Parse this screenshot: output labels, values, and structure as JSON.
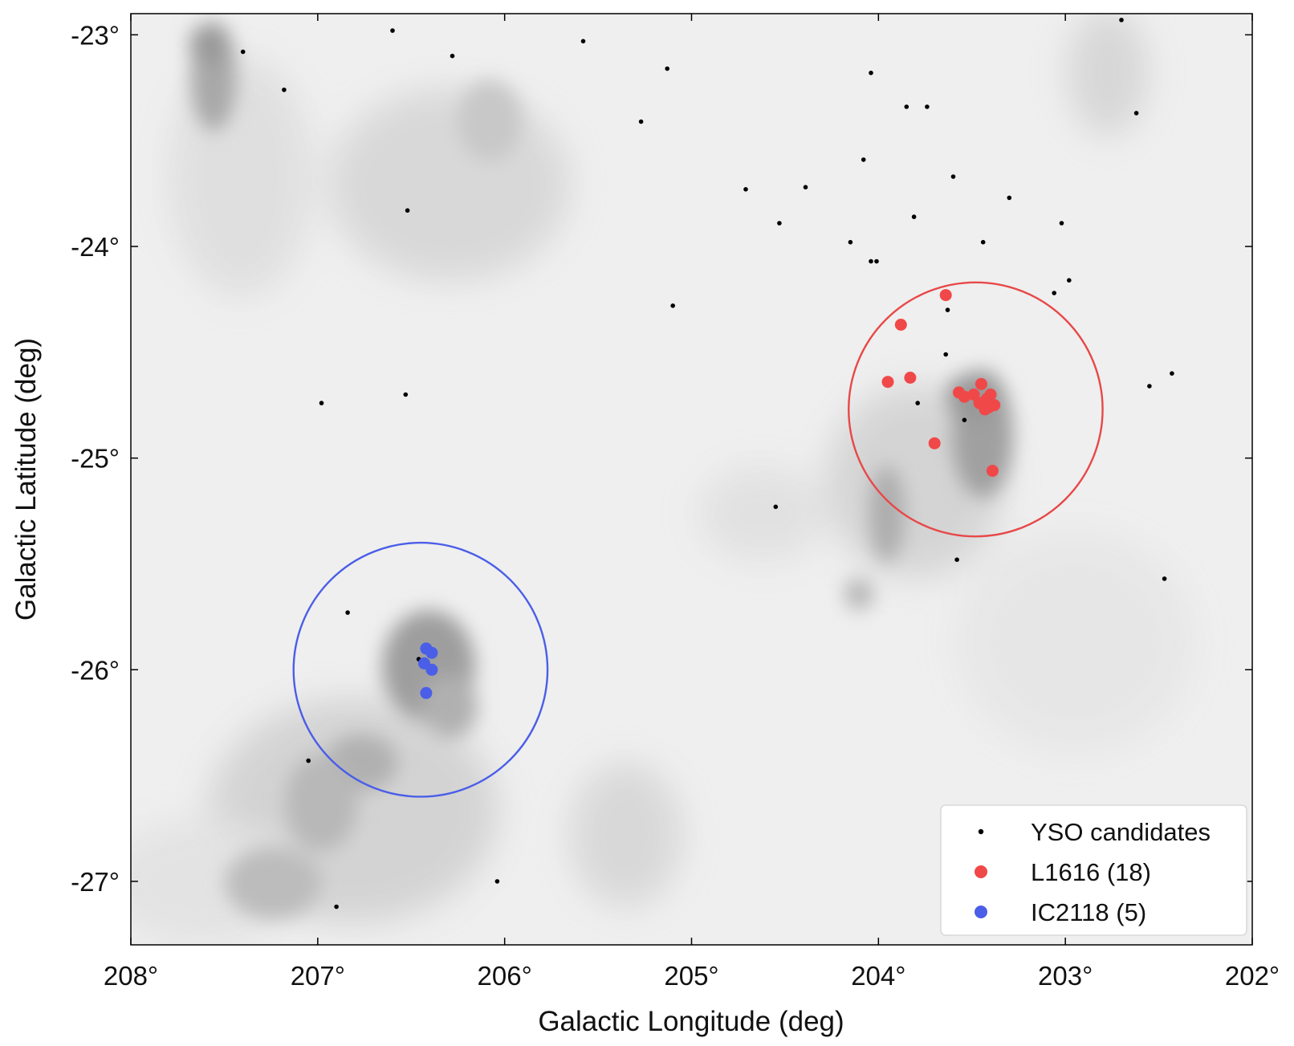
{
  "chart_data": {
    "type": "scatter",
    "xlabel": "Galactic Longitude (deg)",
    "ylabel": "Galactic Latitude (deg)",
    "xlim": [
      208,
      202
    ],
    "ylim": [
      -27.3,
      -22.9
    ],
    "x_ticks": [
      {
        "value": 208,
        "label": "208°"
      },
      {
        "value": 207,
        "label": "207°"
      },
      {
        "value": 206,
        "label": "206°"
      },
      {
        "value": 205,
        "label": "205°"
      },
      {
        "value": 204,
        "label": "204°"
      },
      {
        "value": 203,
        "label": "203°"
      },
      {
        "value": 202,
        "label": "202°"
      }
    ],
    "y_ticks": [
      {
        "value": -23,
        "label": "-23°"
      },
      {
        "value": -24,
        "label": "-24°"
      },
      {
        "value": -25,
        "label": "-25°"
      },
      {
        "value": -26,
        "label": "-26°"
      },
      {
        "value": -27,
        "label": "-27°"
      }
    ],
    "background": "grayscale extinction map",
    "regions": [
      {
        "name": "L1616",
        "center": [
          203.48,
          -24.77
        ],
        "radius_deg": 0.6,
        "color": "#e84848"
      },
      {
        "name": "IC2118",
        "center": [
          206.45,
          -26.0
        ],
        "radius_deg": 0.6,
        "color": "#4a5ee8"
      }
    ],
    "series": [
      {
        "name": "YSO candidates",
        "legend_label": "YSO candidates",
        "color": "#000000",
        "marker": "small-dot",
        "points": [
          [
            206.6,
            -22.98
          ],
          [
            207.4,
            -23.08
          ],
          [
            207.18,
            -23.26
          ],
          [
            206.28,
            -23.1
          ],
          [
            205.58,
            -23.03
          ],
          [
            205.13,
            -23.16
          ],
          [
            205.27,
            -23.41
          ],
          [
            204.04,
            -23.18
          ],
          [
            203.85,
            -23.34
          ],
          [
            203.74,
            -23.34
          ],
          [
            202.62,
            -23.37
          ],
          [
            202.7,
            -22.93
          ],
          [
            204.08,
            -23.59
          ],
          [
            203.6,
            -23.67
          ],
          [
            203.3,
            -23.77
          ],
          [
            204.71,
            -23.73
          ],
          [
            204.39,
            -23.72
          ],
          [
            204.53,
            -23.89
          ],
          [
            203.81,
            -23.86
          ],
          [
            203.02,
            -23.89
          ],
          [
            204.15,
            -23.98
          ],
          [
            203.44,
            -23.98
          ],
          [
            206.52,
            -23.83
          ],
          [
            204.04,
            -24.07
          ],
          [
            204.01,
            -24.07
          ],
          [
            202.98,
            -24.16
          ],
          [
            203.06,
            -24.22
          ],
          [
            205.1,
            -24.28
          ],
          [
            203.63,
            -24.3
          ],
          [
            203.64,
            -24.51
          ],
          [
            206.53,
            -24.7
          ],
          [
            206.98,
            -24.74
          ],
          [
            203.79,
            -24.74
          ],
          [
            203.54,
            -24.82
          ],
          [
            202.55,
            -24.66
          ],
          [
            202.43,
            -24.6
          ],
          [
            204.55,
            -25.23
          ],
          [
            203.58,
            -25.48
          ],
          [
            202.47,
            -25.57
          ],
          [
            206.84,
            -25.73
          ],
          [
            206.46,
            -25.95
          ],
          [
            207.05,
            -26.43
          ],
          [
            206.04,
            -27.0
          ],
          [
            206.9,
            -27.12
          ]
        ]
      },
      {
        "name": "L1616",
        "legend_label": "L1616 (18)",
        "color": "#f04848",
        "marker": "dot",
        "points": [
          [
            203.64,
            -24.23
          ],
          [
            203.88,
            -24.37
          ],
          [
            203.95,
            -24.64
          ],
          [
            203.83,
            -24.62
          ],
          [
            203.45,
            -24.65
          ],
          [
            203.57,
            -24.69
          ],
          [
            203.54,
            -24.71
          ],
          [
            203.49,
            -24.7
          ],
          [
            203.4,
            -24.7
          ],
          [
            203.46,
            -24.74
          ],
          [
            203.44,
            -24.75
          ],
          [
            203.42,
            -24.72
          ],
          [
            203.41,
            -24.76
          ],
          [
            203.38,
            -24.75
          ],
          [
            203.4,
            -24.74
          ],
          [
            203.43,
            -24.77
          ],
          [
            203.7,
            -24.93
          ],
          [
            203.39,
            -25.06
          ]
        ]
      },
      {
        "name": "IC2118",
        "legend_label": "IC2118 (5)",
        "color": "#4a5ee8",
        "marker": "dot",
        "points": [
          [
            206.42,
            -25.9
          ],
          [
            206.39,
            -25.92
          ],
          [
            206.43,
            -25.97
          ],
          [
            206.39,
            -26.0
          ],
          [
            206.42,
            -26.11
          ]
        ]
      }
    ],
    "legend": {
      "position": "bottom-right"
    }
  }
}
